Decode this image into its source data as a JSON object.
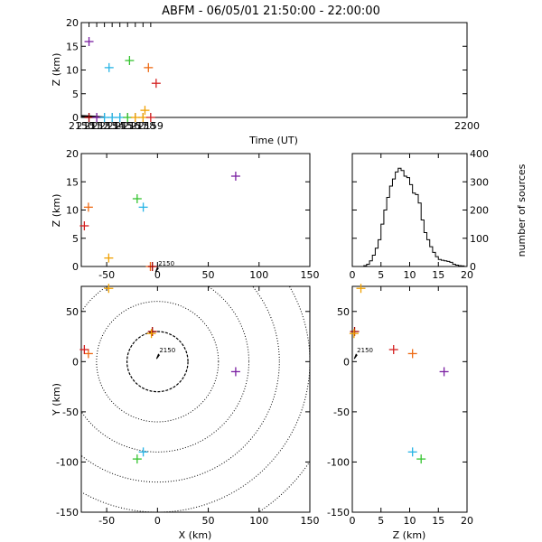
{
  "title": "ABFM - 06/05/01 21:50:00 - 22:00:00",
  "colors": {
    "purple": "#7a1fa2",
    "cyan": "#27b4e6",
    "green": "#35c42f",
    "orange": "#f0a000",
    "darkorange": "#ee6a14",
    "red": "#d42020",
    "darkred": "#a00000",
    "black": "#000000"
  },
  "chart_data": [
    {
      "id": "time_height",
      "type": "scatter",
      "xlabel": "Time (UT)",
      "ylabel": "Z (km)",
      "xlim": [
        2150,
        2200
      ],
      "ylim": [
        0,
        20
      ],
      "x_ticks": [
        2150,
        2151,
        2152,
        2153,
        2154,
        2155,
        2156,
        2157,
        2158,
        2159,
        2200
      ],
      "y_ticks": [
        0,
        5,
        10,
        15,
        20
      ],
      "points": [
        {
          "x": 2151,
          "y": 16,
          "color": "purple"
        },
        {
          "x": 2151,
          "y": 0,
          "color": "darkred"
        },
        {
          "x": 2152,
          "y": 0,
          "color": "purple"
        },
        {
          "x": 2153,
          "y": 0,
          "color": "cyan"
        },
        {
          "x": 2153.6,
          "y": 10.5,
          "color": "cyan"
        },
        {
          "x": 2154,
          "y": 0,
          "color": "cyan"
        },
        {
          "x": 2155,
          "y": 0,
          "color": "cyan"
        },
        {
          "x": 2156,
          "y": 0,
          "color": "green"
        },
        {
          "x": 2156.25,
          "y": 12,
          "color": "green"
        },
        {
          "x": 2157,
          "y": 0,
          "color": "orange"
        },
        {
          "x": 2158,
          "y": 0,
          "color": "orange"
        },
        {
          "x": 2158.25,
          "y": 1.5,
          "color": "orange"
        },
        {
          "x": 2158.7,
          "y": 10.5,
          "color": "darkorange"
        },
        {
          "x": 2159,
          "y": 0,
          "color": "red"
        },
        {
          "x": 2159.7,
          "y": 7.2,
          "color": "red"
        }
      ],
      "ground_trace": [
        [
          2150,
          0.3
        ],
        [
          2151,
          0.25
        ],
        [
          2152,
          0.15
        ],
        [
          2153,
          0
        ]
      ]
    },
    {
      "id": "x_height",
      "type": "scatter",
      "xlabel": "",
      "ylabel": "Z (km)",
      "xlim": [
        -75,
        150
      ],
      "ylim": [
        0,
        20
      ],
      "x_ticks": [
        -50,
        0,
        50,
        100,
        150
      ],
      "y_ticks": [
        0,
        5,
        10,
        15,
        20
      ],
      "points": [
        {
          "x": 77,
          "y": 16,
          "color": "purple"
        },
        {
          "x": -20,
          "y": 12,
          "color": "green"
        },
        {
          "x": -14,
          "y": 10.5,
          "color": "cyan"
        },
        {
          "x": -68,
          "y": 10.5,
          "color": "darkorange"
        },
        {
          "x": -72,
          "y": 7.2,
          "color": "red"
        },
        {
          "x": -48,
          "y": 1.5,
          "color": "orange"
        },
        {
          "x": -7,
          "y": 0,
          "color": "darkorange"
        },
        {
          "x": -5,
          "y": 0,
          "color": "darkred"
        }
      ],
      "annotation": {
        "text": "2150",
        "x": -1,
        "y": 0.3
      }
    },
    {
      "id": "histogram",
      "type": "histogram",
      "xlabel": "",
      "ylabel": "number of sources",
      "xlim": [
        0,
        20
      ],
      "ylim": [
        0,
        400
      ],
      "x_ticks": [
        0,
        5,
        10,
        15,
        20
      ],
      "y_ticks": [
        0,
        100,
        200,
        300,
        400
      ],
      "bin_width": 0.5,
      "bin_start": 0,
      "counts": [
        0,
        0,
        0,
        0,
        3,
        8,
        20,
        40,
        65,
        95,
        150,
        200,
        245,
        285,
        310,
        335,
        348,
        340,
        320,
        315,
        290,
        260,
        255,
        225,
        165,
        120,
        95,
        70,
        50,
        35,
        25,
        22,
        20,
        18,
        15,
        8,
        5,
        3,
        2,
        0
      ]
    },
    {
      "id": "plan_view",
      "type": "scatter",
      "xlabel": "X (km)",
      "ylabel": "Y (km)",
      "xlim": [
        -75,
        150
      ],
      "ylim": [
        -150,
        75
      ],
      "x_ticks": [
        -50,
        0,
        50,
        100,
        150
      ],
      "y_ticks": [
        -150,
        -100,
        -50,
        0,
        50
      ],
      "range_rings": [
        30,
        60,
        90,
        120,
        150,
        180
      ],
      "points": [
        {
          "x": 77,
          "y": -10,
          "color": "purple"
        },
        {
          "x": -14,
          "y": -90,
          "color": "cyan"
        },
        {
          "x": -20,
          "y": -97,
          "color": "green"
        },
        {
          "x": -68,
          "y": 8,
          "color": "darkorange"
        },
        {
          "x": -72,
          "y": 12,
          "color": "red"
        },
        {
          "x": -48,
          "y": 73,
          "color": "orange"
        },
        {
          "x": -5,
          "y": 30,
          "color": "darkred"
        },
        {
          "x": -6,
          "y": 28,
          "color": "orange"
        }
      ],
      "annotation": {
        "text": "2150",
        "x": 0,
        "y": 10
      }
    },
    {
      "id": "z_y",
      "type": "scatter",
      "xlabel": "Z (km)",
      "ylabel": "",
      "xlim": [
        0,
        20
      ],
      "ylim": [
        -150,
        75
      ],
      "x_ticks": [
        0,
        5,
        10,
        15,
        20
      ],
      "y_ticks": [
        -150,
        -100,
        -50,
        0,
        50
      ],
      "points": [
        {
          "x": 16,
          "y": -10,
          "color": "purple"
        },
        {
          "x": 10.5,
          "y": -90,
          "color": "cyan"
        },
        {
          "x": 12,
          "y": -97,
          "color": "green"
        },
        {
          "x": 10.5,
          "y": 8,
          "color": "darkorange"
        },
        {
          "x": 7.2,
          "y": 12,
          "color": "red"
        },
        {
          "x": 1.5,
          "y": 73,
          "color": "orange"
        },
        {
          "x": 0.4,
          "y": 30,
          "color": "darkred"
        },
        {
          "x": 0.3,
          "y": 28,
          "color": "orange"
        }
      ],
      "annotation": {
        "text": "2150",
        "x": 0.5,
        "y": 10
      }
    }
  ]
}
